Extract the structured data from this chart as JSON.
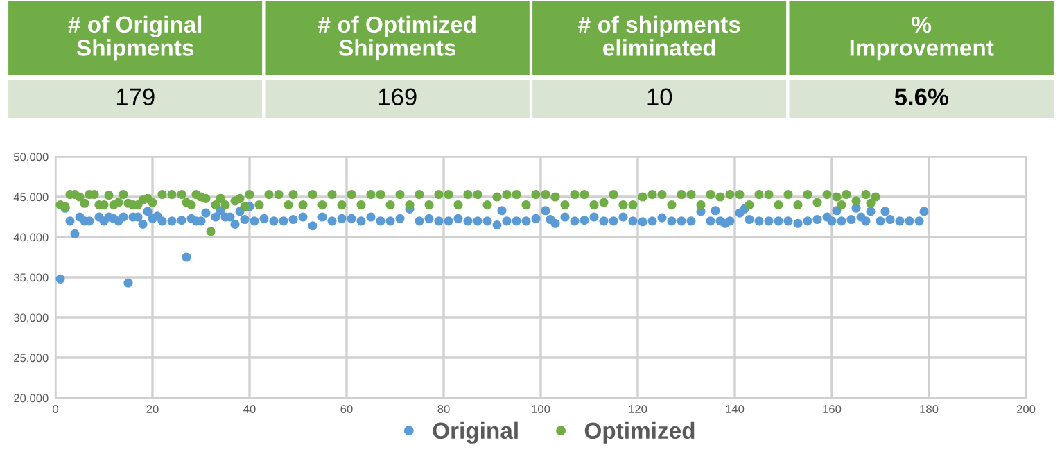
{
  "chart_data": [
    {
      "type": "other",
      "categories": [
        "# of Original Shipments",
        "# of Optimized Shipments",
        "# of shipments eliminated",
        "% Improvement"
      ],
      "value_labels": [
        "179",
        "169",
        "10",
        "5.6%"
      ]
    },
    {
      "type": "scatter",
      "xlim": [
        0,
        200
      ],
      "xticks": [
        0,
        20,
        40,
        60,
        80,
        100,
        120,
        140,
        160,
        180,
        200
      ],
      "ylim": [
        20000,
        50000
      ],
      "yticks": [
        {
          "value": 20000,
          "label": "20,000"
        },
        {
          "value": 25000,
          "label": "25,000"
        },
        {
          "value": 30000,
          "label": "30,000"
        },
        {
          "value": 35000,
          "label": "35,000"
        },
        {
          "value": 40000,
          "label": "40,000"
        },
        {
          "value": 45000,
          "label": "45,000"
        },
        {
          "value": 50000,
          "label": "50,000"
        }
      ],
      "grid": true,
      "legend": "bottom",
      "marker": "circle",
      "series": [
        {
          "name": "Original",
          "color": "#5b9bd5",
          "x": [
            1,
            2,
            3,
            4,
            5,
            6,
            7,
            9,
            10,
            11,
            12,
            13,
            14,
            15,
            16,
            17,
            18,
            19,
            20,
            21,
            22,
            24,
            26,
            27,
            28,
            29,
            30,
            31,
            33,
            34,
            35,
            36,
            37,
            38,
            39,
            40,
            41,
            43,
            45,
            47,
            49,
            51,
            53,
            55,
            57,
            59,
            61,
            63,
            65,
            67,
            69,
            71,
            73,
            75,
            77,
            79,
            81,
            83,
            85,
            87,
            89,
            91,
            92,
            93,
            95,
            97,
            99,
            101,
            102,
            103,
            105,
            107,
            109,
            111,
            113,
            115,
            117,
            119,
            121,
            123,
            125,
            127,
            129,
            131,
            133,
            135,
            136,
            137,
            138,
            139,
            141,
            142,
            143,
            145,
            147,
            149,
            151,
            153,
            155,
            157,
            159,
            160,
            161,
            162,
            164,
            165,
            166,
            167,
            168,
            170,
            171,
            172,
            174,
            176,
            178,
            179
          ],
          "values": [
            34800,
            43600,
            42000,
            40400,
            42500,
            42000,
            42000,
            42500,
            42000,
            42500,
            42300,
            42000,
            42500,
            34300,
            42500,
            42500,
            41600,
            43200,
            42300,
            42600,
            42000,
            42000,
            42100,
            37500,
            42300,
            42000,
            42000,
            43000,
            42500,
            43300,
            42500,
            42500,
            41600,
            43200,
            42200,
            43800,
            42000,
            42300,
            42000,
            42000,
            42200,
            42500,
            41400,
            42500,
            42000,
            42300,
            42300,
            42000,
            42500,
            42000,
            42000,
            42300,
            43500,
            42000,
            42300,
            42000,
            42000,
            42300,
            42000,
            42000,
            42000,
            41500,
            43300,
            42000,
            42000,
            42000,
            42300,
            43300,
            42200,
            41700,
            42500,
            42000,
            42100,
            42500,
            42000,
            42000,
            42500,
            42000,
            41900,
            42000,
            42400,
            42000,
            42000,
            42000,
            43200,
            42000,
            43300,
            42000,
            41700,
            42000,
            43000,
            43500,
            42200,
            42000,
            42000,
            42000,
            42000,
            41700,
            42000,
            42200,
            42500,
            42000,
            43300,
            42000,
            42200,
            43600,
            42500,
            42000,
            43200,
            42000,
            43200,
            42200,
            42000,
            42000,
            42000,
            43200
          ]
        },
        {
          "name": "Optimized",
          "color": "#70ad47",
          "x": [
            1,
            2,
            3,
            4,
            5,
            6,
            7,
            8,
            9,
            10,
            11,
            12,
            13,
            14,
            15,
            16,
            17,
            18,
            19,
            20,
            22,
            24,
            26,
            27,
            28,
            29,
            30,
            31,
            32,
            33,
            34,
            35,
            37,
            38,
            39,
            40,
            42,
            44,
            46,
            48,
            49,
            51,
            53,
            55,
            57,
            59,
            61,
            63,
            65,
            67,
            69,
            71,
            73,
            75,
            77,
            79,
            81,
            83,
            85,
            87,
            89,
            91,
            93,
            95,
            97,
            99,
            101,
            103,
            105,
            107,
            109,
            111,
            113,
            115,
            117,
            119,
            121,
            123,
            125,
            127,
            129,
            131,
            133,
            135,
            137,
            139,
            141,
            143,
            145,
            147,
            149,
            151,
            153,
            155,
            157,
            159,
            161,
            162,
            163,
            165,
            167,
            168,
            169
          ],
          "values": [
            44000,
            43800,
            45300,
            45300,
            45000,
            44200,
            45300,
            45300,
            44000,
            44000,
            45200,
            44000,
            44300,
            45300,
            44200,
            44000,
            44000,
            44600,
            44800,
            44300,
            45300,
            45300,
            45300,
            44300,
            44000,
            45300,
            45000,
            44800,
            40700,
            44000,
            44800,
            44000,
            44500,
            44800,
            43800,
            45300,
            44000,
            45300,
            45300,
            44000,
            45300,
            44000,
            45300,
            44000,
            45300,
            44000,
            45300,
            44000,
            45300,
            45300,
            44000,
            45300,
            44000,
            45300,
            44000,
            45300,
            45300,
            44000,
            45300,
            45300,
            44000,
            45000,
            45300,
            45300,
            44000,
            45300,
            45300,
            45000,
            44000,
            45300,
            45300,
            44000,
            44300,
            45300,
            44000,
            44000,
            45000,
            45300,
            45300,
            44000,
            45300,
            45300,
            44000,
            45300,
            45000,
            45300,
            45300,
            44000,
            45300,
            45300,
            44000,
            45300,
            44000,
            45300,
            44300,
            45300,
            45000,
            44000,
            45300,
            44500,
            45300,
            44200,
            45000
          ]
        }
      ]
    }
  ]
}
